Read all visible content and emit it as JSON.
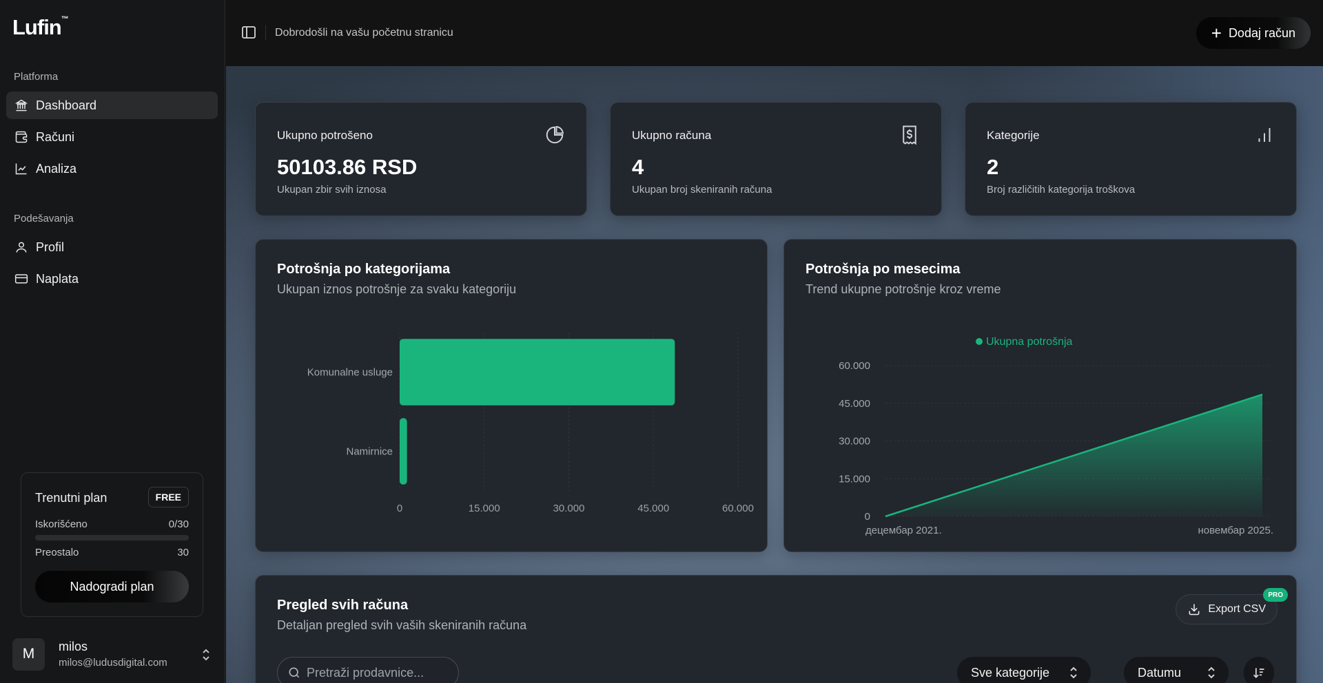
{
  "app": {
    "logo": "Lufin",
    "logo_mark": "™"
  },
  "sidebar": {
    "section_platform": "Platforma",
    "section_settings": "Podešavanja",
    "platform_items": [
      {
        "label": "Dashboard",
        "icon": "bank-icon"
      },
      {
        "label": "Računi",
        "icon": "wallet-icon"
      },
      {
        "label": "Analiza",
        "icon": "line-chart-icon"
      }
    ],
    "settings_items": [
      {
        "label": "Profil",
        "icon": "user-icon"
      },
      {
        "label": "Naplata",
        "icon": "credit-card-icon"
      }
    ],
    "plan": {
      "title": "Trenutni plan",
      "badge": "FREE",
      "used_label": "Iskorišćeno",
      "used_value": "0/30",
      "used_fraction": 0,
      "remaining_label": "Preostalo",
      "remaining_value": "30",
      "upgrade_label": "Nadogradi plan"
    },
    "user": {
      "initial": "M",
      "name": "milos",
      "email": "milos@ludusdigital.com"
    }
  },
  "header": {
    "welcome": "Dobrodošli na vašu početnu stranicu",
    "add_button": "Dodaj račun"
  },
  "stats": [
    {
      "label": "Ukupno potrošeno",
      "value": "50103.86 RSD",
      "sub": "Ukupan zbir svih iznosa",
      "icon": "pie-chart-icon"
    },
    {
      "label": "Ukupno računa",
      "value": "4",
      "sub": "Ukupan broj skeniranih računa",
      "icon": "receipt-icon"
    },
    {
      "label": "Kategorije",
      "value": "2",
      "sub": "Broj različitih kategorija troškova",
      "icon": "bar-chart-icon"
    }
  ],
  "category_card": {
    "title": "Potrošnja po kategorijama",
    "subtitle": "Ukupan iznos potrošnje za svaku kategoriju"
  },
  "month_card": {
    "title": "Potrošnja po mesecima",
    "subtitle": "Trend ukupne potrošnje kroz vreme"
  },
  "chart_data": [
    {
      "type": "bar",
      "orientation": "horizontal",
      "title": "Potrošnja po kategorijama",
      "categories": [
        "Komunalne usluge",
        "Namirnice"
      ],
      "values": [
        48800,
        1300
      ],
      "xlim": [
        0,
        60000
      ],
      "ticks": [
        0,
        15000,
        30000,
        45000,
        60000
      ],
      "tick_labels": [
        "0",
        "15.000",
        "30.000",
        "45.000",
        "60.000"
      ],
      "color": "#1ab57d"
    },
    {
      "type": "area",
      "title": "Potrošnja po mesecima",
      "legend": "Ukupna potrošnja",
      "x": [
        "децембар 2021.",
        "новембар 2025."
      ],
      "values": [
        0,
        48500
      ],
      "ylim": [
        0,
        60000
      ],
      "yticks": [
        0,
        15000,
        30000,
        45000,
        60000
      ],
      "ytick_labels": [
        "0",
        "15.000",
        "30.000",
        "45.000",
        "60.000"
      ],
      "color": "#1ab57d"
    }
  ],
  "table_card": {
    "title": "Pregled svih računa",
    "subtitle": "Detaljan pregled svih vaših skeniranih računa",
    "export_label": "Export CSV",
    "pro_badge": "PRO",
    "search_placeholder": "Pretraži prodavnice...",
    "category_select": "Sve kategorije",
    "sort_select": "Datumu"
  },
  "colors": {
    "accent": "#1ab57d",
    "card": "#22262d",
    "sidebar": "#161718"
  }
}
